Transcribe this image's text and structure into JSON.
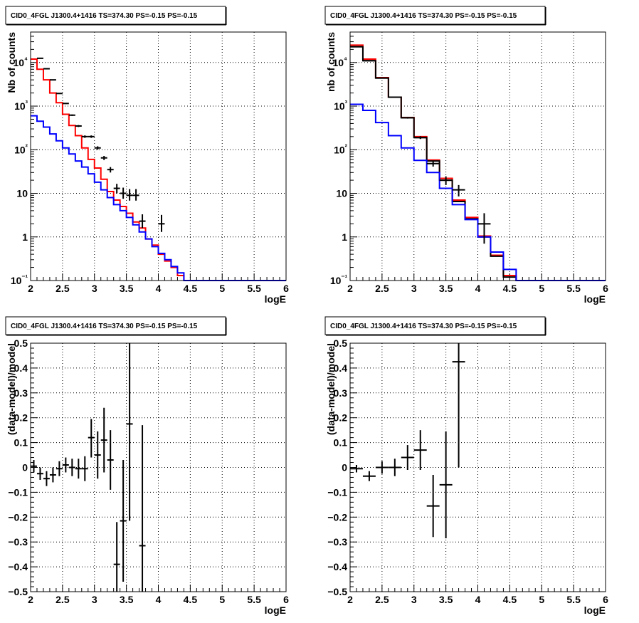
{
  "chart_data": [
    {
      "type": "line",
      "title": "CID0_4FGL J1300.4+1416 TS=374.30 PS=-0.15 PS=-0.15",
      "xlabel": "logE",
      "ylabel": "Nb of counts",
      "xlim": [
        2,
        6
      ],
      "ylim": [
        0.1,
        50000
      ],
      "log_y": true,
      "grid": true,
      "x_ticks": [
        "2",
        "2.5",
        "3",
        "3.5",
        "4",
        "4.5",
        "5",
        "5.5",
        "6"
      ],
      "y_ticks": [
        "10⁻¹",
        "1",
        "10",
        "10²",
        "10³",
        "10⁴"
      ],
      "series": [
        {
          "color": "#ff0000",
          "bin_width": 0.1,
          "x": [
            2.0,
            2.1,
            2.2,
            2.3,
            2.4,
            2.5,
            2.6,
            2.7,
            2.8,
            2.9,
            3.0,
            3.1,
            3.2,
            3.3,
            3.4,
            3.5,
            3.6,
            3.7,
            3.8,
            3.9,
            4.0,
            4.1,
            4.2,
            4.3,
            4.4,
            4.5,
            4.6,
            4.7,
            4.8,
            4.9,
            5.0,
            5.1,
            5.2,
            5.3,
            5.4,
            5.5,
            5.6,
            5.7,
            5.8,
            5.9
          ],
          "y": [
            12000,
            7000,
            4000,
            2000,
            1200,
            650,
            360,
            210,
            110,
            60,
            38,
            21,
            11,
            7,
            5,
            3.5,
            2.2,
            1.6,
            0.9,
            0.65,
            0.4,
            0.28,
            0.2,
            0.13,
            0.1,
            0.1,
            0.1,
            0.1,
            0.1,
            0.1,
            0.1,
            0.1,
            0.1,
            0.1,
            0.1,
            0.1,
            0.1,
            0.1,
            0.1,
            0.1
          ]
        },
        {
          "color": "#0000ff",
          "bin_width": 0.1,
          "x": [
            2.0,
            2.1,
            2.2,
            2.3,
            2.4,
            2.5,
            2.6,
            2.7,
            2.8,
            2.9,
            3.0,
            3.1,
            3.2,
            3.3,
            3.4,
            3.5,
            3.6,
            3.7,
            3.8,
            3.9,
            4.0,
            4.1,
            4.2,
            4.3,
            4.4,
            4.5,
            4.6,
            4.7,
            4.8,
            4.9,
            5.0,
            5.1,
            5.2,
            5.3,
            5.4,
            5.5,
            5.6,
            5.7,
            5.8,
            5.9
          ],
          "y": [
            600,
            450,
            330,
            230,
            160,
            110,
            80,
            55,
            40,
            28,
            18,
            12,
            8,
            5.5,
            4,
            2.8,
            1.9,
            1.3,
            0.9,
            0.6,
            0.42,
            0.3,
            0.21,
            0.15,
            0.1,
            0.1,
            0.1,
            0.1,
            0.1,
            0.1,
            0.1,
            0.1,
            0.1,
            0.1,
            0.1,
            0.1,
            0.1,
            0.1,
            0.1,
            0.1
          ]
        },
        {
          "color": "#000000",
          "kind": "errorbar",
          "x_half_width": 0.05,
          "x": [
            2.15,
            2.25,
            2.35,
            2.45,
            2.55,
            2.65,
            2.75,
            2.85,
            2.95,
            3.05,
            3.15,
            3.25,
            3.35,
            3.45,
            3.55,
            3.65,
            3.75,
            4.05
          ],
          "y": [
            12500,
            7200,
            4000,
            1950,
            1150,
            620,
            350,
            200,
            200,
            110,
            65,
            35,
            13,
            10,
            9,
            9,
            2.3,
            2
          ],
          "yerr_low": [
            12300,
            7100,
            3940,
            1906,
            1116,
            596,
            332,
            187,
            187,
            100,
            58,
            30,
            10,
            7.5,
            6.8,
            6.8,
            1.6,
            1.3
          ],
          "yerr_high": [
            12700,
            7300,
            4060,
            1994,
            1184,
            644,
            368,
            213,
            213,
            120,
            72,
            40,
            16.5,
            13.5,
            12.5,
            12.5,
            3.3,
            3.2
          ]
        }
      ]
    },
    {
      "type": "line",
      "title": "CID0_4FGL J1300.4+1416 TS=374.30 PS=-0.15 PS=-0.15",
      "xlabel": "logE",
      "ylabel": "nb of counts",
      "xlim": [
        2,
        6
      ],
      "ylim": [
        0.1,
        50000
      ],
      "log_y": true,
      "grid": true,
      "x_ticks": [
        "2",
        "2.5",
        "3",
        "3.5",
        "4",
        "4.5",
        "5",
        "5.5",
        "6"
      ],
      "y_ticks": [
        "10⁻¹",
        "1",
        "10",
        "10²",
        "10³",
        "10⁴"
      ],
      "series": [
        {
          "color": "#ff0000",
          "bin_width": 0.2,
          "x": [
            2.0,
            2.2,
            2.4,
            2.6,
            2.8,
            3.0,
            3.2,
            3.4,
            3.6,
            3.8,
            4.0,
            4.2,
            4.4,
            4.6,
            4.8,
            5.0,
            5.2,
            5.4,
            5.6,
            5.8
          ],
          "y": [
            25000,
            12000,
            4500,
            1600,
            550,
            200,
            58,
            22,
            7,
            2.8,
            1.05,
            0.38,
            0.13,
            0.1,
            0.1,
            0.1,
            0.1,
            0.1,
            0.1,
            0.1
          ]
        },
        {
          "color": "#000000",
          "bin_width": 0.2,
          "x": [
            2.0,
            2.2,
            2.4,
            2.6,
            2.8,
            3.0,
            3.2,
            3.4,
            3.6,
            3.8,
            4.0,
            4.2,
            4.4,
            4.6,
            4.8,
            5.0,
            5.2,
            5.4,
            5.6,
            5.8
          ],
          "y": [
            23000,
            11000,
            4400,
            1600,
            540,
            190,
            55,
            20,
            6.5,
            2.6,
            1.0,
            0.36,
            0.12,
            0.1,
            0.1,
            0.1,
            0.1,
            0.1,
            0.1,
            0.1
          ]
        },
        {
          "color": "#0000ff",
          "bin_width": 0.2,
          "x": [
            2.0,
            2.2,
            2.4,
            2.6,
            2.8,
            3.0,
            3.2,
            3.4,
            3.6,
            3.8,
            4.0,
            4.2,
            4.4,
            4.6,
            4.8,
            5.0,
            5.2,
            5.4,
            5.6,
            5.8
          ],
          "y": [
            1100,
            800,
            420,
            210,
            110,
            57,
            30,
            13,
            5.5,
            2.5,
            1.0,
            0.45,
            0.18,
            0.1,
            0.1,
            0.1,
            0.1,
            0.1,
            0.1,
            0.1
          ]
        },
        {
          "color": "#000000",
          "kind": "errorbar",
          "x_half_width": 0.1,
          "x": [
            2.1,
            2.3,
            2.5,
            2.7,
            2.9,
            3.1,
            3.3,
            3.5,
            3.7,
            4.1
          ],
          "y": [
            23000,
            11000,
            4400,
            1600,
            540,
            190,
            48,
            20,
            12,
            2
          ],
          "yerr_low": [
            22850,
            10890,
            4334,
            1560,
            517,
            176,
            41,
            15.5,
            8.5,
            0.7
          ],
          "yerr_high": [
            23150,
            11110,
            4466,
            1640,
            563,
            204,
            55,
            24.5,
            15.5,
            3.5
          ]
        }
      ]
    },
    {
      "type": "scatter",
      "title": "CID0_4FGL J1300.4+1416 TS=374.30 PS=-0.15 PS=-0.15",
      "xlabel": "logE",
      "ylabel": "(data-model)/model",
      "xlim": [
        2,
        6
      ],
      "ylim": [
        -0.5,
        0.5
      ],
      "grid": true,
      "x_ticks": [
        "2",
        "2.5",
        "3",
        "3.5",
        "4",
        "4.5",
        "5",
        "5.5",
        "6"
      ],
      "y_ticks": [
        "−0.5",
        "−0.4",
        "−0.3",
        "−0.2",
        "−0.1",
        "0",
        "0.1",
        "0.2",
        "0.3",
        "0.4",
        "0.5"
      ],
      "series": [
        {
          "color": "#000000",
          "kind": "errorbar",
          "x_half_width": 0.05,
          "x": [
            2.05,
            2.15,
            2.25,
            2.35,
            2.45,
            2.55,
            2.65,
            2.75,
            2.85,
            2.95,
            3.05,
            3.15,
            3.25,
            3.35,
            3.45,
            3.55,
            3.75
          ],
          "y": [
            0.005,
            -0.025,
            -0.045,
            -0.03,
            -0.005,
            0.01,
            0.0,
            -0.005,
            -0.005,
            0.12,
            0.05,
            0.11,
            0.03,
            -0.39,
            -0.215,
            0.175,
            -0.315
          ],
          "yerr_low": [
            -0.02,
            -0.05,
            -0.075,
            -0.06,
            -0.035,
            -0.02,
            -0.035,
            -0.045,
            -0.055,
            0.04,
            -0.045,
            -0.02,
            -0.09,
            -0.52,
            -0.46,
            -0.215,
            -0.53
          ],
          "yerr_high": [
            0.03,
            0.0,
            -0.015,
            0.0,
            0.025,
            0.04,
            0.035,
            0.035,
            0.045,
            0.195,
            0.145,
            0.24,
            0.15,
            -0.22,
            0.03,
            0.56,
            0.17
          ]
        }
      ]
    },
    {
      "type": "scatter",
      "title": "CID0_4FGL J1300.4+1416 TS=374.30 PS=-0.15 PS=-0.15",
      "xlabel": "logE",
      "ylabel": "(data-model)/model",
      "xlim": [
        2,
        6
      ],
      "ylim": [
        -0.5,
        0.5
      ],
      "grid": true,
      "x_ticks": [
        "2",
        "2.5",
        "3",
        "3.5",
        "4",
        "4.5",
        "5",
        "5.5",
        "6"
      ],
      "y_ticks": [
        "−0.5",
        "−0.4",
        "−0.3",
        "−0.2",
        "−0.1",
        "0",
        "0.1",
        "0.2",
        "0.3",
        "0.4",
        "0.5"
      ],
      "series": [
        {
          "color": "#000000",
          "kind": "errorbar",
          "x_half_width": 0.1,
          "x": [
            2.1,
            2.3,
            2.5,
            2.7,
            2.9,
            3.1,
            3.3,
            3.5,
            3.7
          ],
          "y": [
            -0.005,
            -0.035,
            0.0,
            0.0,
            0.04,
            0.07,
            -0.155,
            -0.07,
            0.425
          ],
          "yerr_low": [
            -0.02,
            -0.055,
            -0.025,
            -0.035,
            -0.01,
            -0.01,
            -0.28,
            -0.285,
            0.0
          ],
          "yerr_high": [
            0.01,
            -0.015,
            0.025,
            0.035,
            0.09,
            0.15,
            -0.03,
            0.145,
            0.85
          ]
        }
      ]
    }
  ]
}
